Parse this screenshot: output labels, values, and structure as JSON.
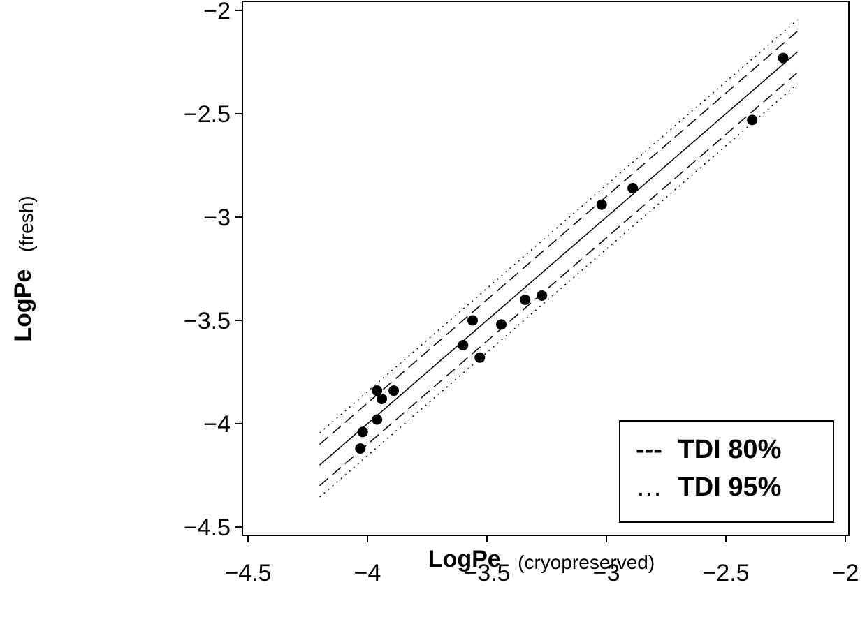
{
  "chart_data": {
    "type": "scatter",
    "title": "",
    "xlabel": {
      "main": "LogPe",
      "sub": "(cryopreserved)"
    },
    "ylabel": {
      "main": "LogPe",
      "sub": "(fresh)"
    },
    "xlim": [
      -4.5,
      -2
    ],
    "ylim": [
      -4.5,
      -2
    ],
    "xticks": [
      -4.5,
      -4,
      -3.5,
      -3,
      -2.5,
      -2
    ],
    "yticks": [
      -2,
      -2.5,
      -3,
      -3.5,
      -4,
      -4.5
    ],
    "xtick_labels": [
      "−4.5",
      "−4",
      "−3.5",
      "−3",
      "−2.5",
      "−2"
    ],
    "ytick_labels": [
      "−2",
      "−2.5",
      "−3",
      "−3.5",
      "−4",
      "−4.5"
    ],
    "grid": false,
    "legend_position": "bottom-right",
    "legend": [
      {
        "marker": "---",
        "label": "TDI 80%",
        "style": "dashed"
      },
      {
        "marker": "…",
        "label": "TDI 95%",
        "style": "dotted"
      }
    ],
    "points": [
      {
        "x": -4.03,
        "y": -4.12
      },
      {
        "x": -4.02,
        "y": -4.04
      },
      {
        "x": -3.96,
        "y": -3.98
      },
      {
        "x": -3.96,
        "y": -3.84
      },
      {
        "x": -3.94,
        "y": -3.88
      },
      {
        "x": -3.89,
        "y": -3.84
      },
      {
        "x": -3.6,
        "y": -3.62
      },
      {
        "x": -3.56,
        "y": -3.5
      },
      {
        "x": -3.53,
        "y": -3.68
      },
      {
        "x": -3.44,
        "y": -3.52
      },
      {
        "x": -3.34,
        "y": -3.4
      },
      {
        "x": -3.27,
        "y": -3.38
      },
      {
        "x": -3.02,
        "y": -2.94
      },
      {
        "x": -2.89,
        "y": -2.86
      },
      {
        "x": -2.39,
        "y": -2.53
      },
      {
        "x": -2.26,
        "y": -2.23
      }
    ],
    "lines": [
      {
        "name": "identity",
        "style": "solid",
        "x": [
          -4.2,
          -2.2
        ],
        "y": [
          -4.2,
          -2.2
        ]
      },
      {
        "name": "tdi80-upper",
        "style": "dashed",
        "x": [
          -4.2,
          -2.2
        ],
        "y": [
          -4.1,
          -2.1
        ]
      },
      {
        "name": "tdi80-lower",
        "style": "dashed",
        "x": [
          -4.2,
          -2.2
        ],
        "y": [
          -4.3,
          -2.3
        ]
      },
      {
        "name": "tdi95-upper",
        "style": "dotted",
        "x": [
          -4.2,
          -2.2
        ],
        "y": [
          -4.045,
          -2.045
        ]
      },
      {
        "name": "tdi95-lower",
        "style": "dotted",
        "x": [
          -4.2,
          -2.2
        ],
        "y": [
          -4.355,
          -2.355
        ]
      }
    ]
  }
}
